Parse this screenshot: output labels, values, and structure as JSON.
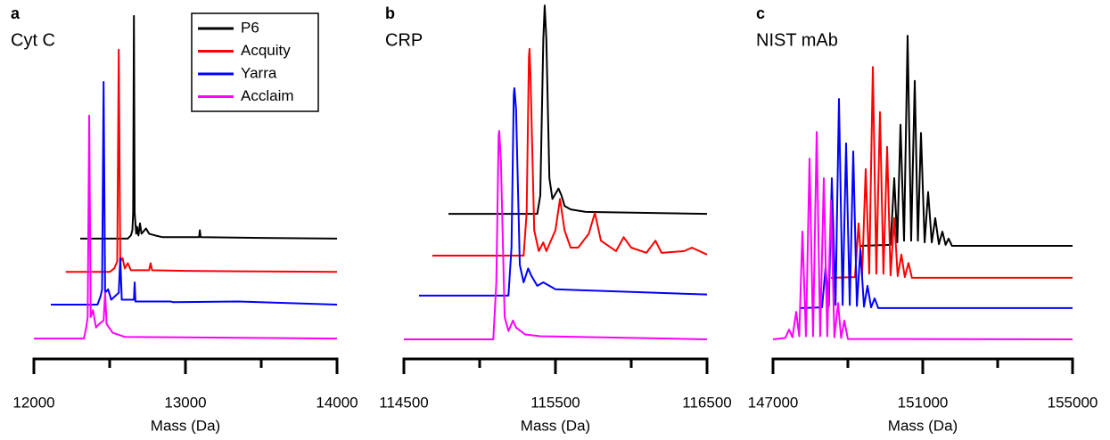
{
  "chart_data": [
    {
      "type": "line",
      "panel_label": "a",
      "title": "Cyt C",
      "xlabel": "Mass (Da)",
      "legend": "top-right",
      "xlim": [
        12000,
        14000
      ],
      "xticks": [
        12000,
        13000,
        14000
      ],
      "minor_xticks": [
        12500,
        13500
      ],
      "ylim": [
        0,
        100
      ],
      "series": [
        {
          "name": "P6",
          "color": "#000000",
          "x": [
            12306,
            12620,
            12640,
            12650,
            12655,
            12660,
            12665,
            12675,
            12680,
            12690,
            12700,
            12710,
            12740,
            12760,
            12800,
            12850,
            13090,
            13095,
            13100,
            13500,
            14000
          ],
          "values": [
            32.6,
            32.6,
            33.5,
            35,
            40,
            96.7,
            40,
            34,
            36,
            33.5,
            37,
            34,
            35.5,
            34,
            33.5,
            33,
            33,
            35,
            33,
            32.8,
            32.6
          ]
        },
        {
          "name": "Acquity",
          "color": "#ff0000",
          "x": [
            12210,
            12500,
            12530,
            12550,
            12560,
            12570,
            12585,
            12600,
            12620,
            12640,
            12760,
            12770,
            12780,
            13000,
            14000
          ],
          "values": [
            23,
            23,
            24,
            26,
            87,
            26,
            27,
            24,
            25.5,
            23.5,
            23.5,
            25.5,
            23.5,
            23.3,
            23
          ]
        },
        {
          "name": "Yarra",
          "color": "#0000ff",
          "x": [
            12112,
            12420,
            12440,
            12450,
            12460,
            12470,
            12490,
            12510,
            12560,
            12570,
            12580,
            12660,
            12665,
            12670,
            12900,
            12920,
            13350,
            14000
          ],
          "values": [
            13.6,
            13.6,
            16,
            18,
            77.7,
            17,
            18,
            15,
            17,
            27,
            15,
            15,
            20,
            14.5,
            14.5,
            14.3,
            14.5,
            13.6
          ]
        },
        {
          "name": "Acclaim",
          "color": "#ff00ff",
          "x": [
            12000,
            12330,
            12345,
            12355,
            12365,
            12375,
            12390,
            12410,
            12430,
            12460,
            12470,
            12480,
            12520,
            12600,
            14000
          ],
          "values": [
            3.8,
            3.8,
            7,
            10,
            68,
            10,
            12,
            7,
            8,
            9,
            17,
            8,
            5.5,
            4.3,
            3.8
          ]
        }
      ]
    },
    {
      "type": "line",
      "panel_label": "b",
      "title": "CRP",
      "xlabel": "Mass (Da)",
      "xlim": [
        114500,
        116500
      ],
      "xticks": [
        114500,
        115500,
        116500
      ],
      "minor_xticks": [
        115000,
        116000
      ],
      "ylim": [
        0,
        100
      ],
      "series": [
        {
          "color": "#000000",
          "x": [
            114794,
            115380,
            115400,
            115420,
            115429,
            115440,
            115460,
            115480,
            115520,
            115540,
            115560,
            115600,
            115700,
            116500
          ],
          "values": [
            39.7,
            39.7,
            45,
            90,
            99.7,
            90,
            50,
            44,
            47,
            45,
            42,
            41,
            40.3,
            39.7
          ]
        },
        {
          "color": "#ff0000",
          "x": [
            114688,
            115290,
            115310,
            115325,
            115329,
            115335,
            115360,
            115390,
            115420,
            115440,
            115500,
            115530,
            115560,
            115600,
            115650,
            115720,
            115760,
            115800,
            115900,
            115950,
            116000,
            116100,
            116160,
            116200,
            116350,
            116400,
            116500
          ],
          "values": [
            27.7,
            27.7,
            40,
            85,
            87.2,
            80,
            35,
            29,
            31.5,
            29,
            35,
            44,
            35,
            30,
            30,
            34,
            40,
            32,
            29,
            33,
            30,
            28.5,
            32,
            28.5,
            29,
            30,
            28
          ]
        },
        {
          "color": "#0000ff",
          "x": [
            114600,
            115190,
            115210,
            115225,
            115229,
            115240,
            115265,
            115290,
            115320,
            115340,
            115380,
            115420,
            115500,
            116500
          ],
          "values": [
            16.2,
            16.2,
            30,
            74,
            75.9,
            70,
            25,
            20,
            24,
            22,
            19,
            20,
            18,
            16.5
          ]
        },
        {
          "color": "#ff00ff",
          "x": [
            114500,
            115090,
            115110,
            115125,
            115129,
            115140,
            115165,
            115190,
            115220,
            115240,
            115300,
            115400,
            116500
          ],
          "values": [
            3.6,
            3.6,
            20,
            62,
            63.6,
            55,
            10,
            6,
            9,
            7,
            5,
            4.5,
            3.6
          ]
        }
      ]
    },
    {
      "type": "line",
      "panel_label": "c",
      "title": "NIST mAb",
      "xlabel": "Mass (Da)",
      "xlim": [
        147000,
        155000
      ],
      "xticks": [
        147000,
        151000,
        155000
      ],
      "minor_xticks": [
        149000,
        153000
      ],
      "ylim": [
        0,
        100
      ],
      "series": [
        {
          "color": "#000000",
          "x": [
            149333,
            150140,
            150238,
            150320,
            150405,
            150500,
            150595,
            150690,
            150786,
            150870,
            150952,
            151050,
            151143,
            151240,
            151333,
            151430,
            151524,
            151610,
            151690,
            151780,
            155000
          ],
          "values": [
            30.5,
            30.8,
            50,
            31.5,
            65.4,
            32,
            91,
            32,
            78,
            32,
            63,
            31.5,
            46,
            31.5,
            38.5,
            31,
            34.6,
            30.8,
            32.6,
            30.5,
            30.5
          ]
        },
        {
          "color": "#ff0000",
          "x": [
            148548,
            149190,
            149286,
            149380,
            149476,
            149570,
            149667,
            149760,
            149857,
            149950,
            150048,
            150140,
            150238,
            150330,
            150429,
            150520,
            150619,
            150710,
            155000
          ],
          "values": [
            21.3,
            21.5,
            37,
            22,
            52.6,
            22.5,
            82,
            22.5,
            69,
            22.5,
            59,
            22,
            38.5,
            21.8,
            28,
            21.5,
            25.6,
            21.3,
            21.3
          ]
        },
        {
          "color": "#0000ff",
          "x": [
            147738,
            148310,
            148405,
            148490,
            148571,
            148670,
            148762,
            148860,
            148952,
            149050,
            149143,
            149240,
            149333,
            149430,
            149524,
            149620,
            149714,
            149810,
            155000
          ],
          "values": [
            12.6,
            12.8,
            24.4,
            13.2,
            50,
            13.5,
            72.8,
            13.5,
            60,
            13.5,
            57.7,
            13.2,
            29.5,
            13,
            19,
            12.8,
            15.4,
            12.6,
            12.6
          ]
        },
        {
          "color": "#ff00ff",
          "x": [
            147000,
            147330,
            147429,
            147520,
            147619,
            147700,
            147786,
            147880,
            147976,
            148070,
            148167,
            148260,
            148357,
            148450,
            148548,
            148640,
            148738,
            148820,
            148905,
            149000,
            155000
          ],
          "values": [
            3.6,
            4,
            6.4,
            4.2,
            11.5,
            4.5,
            34.6,
            4.5,
            55.6,
            4.5,
            63.3,
            4.5,
            50,
            4.5,
            43.6,
            4.2,
            14,
            4,
            9,
            3.7,
            3.6
          ]
        }
      ]
    }
  ]
}
